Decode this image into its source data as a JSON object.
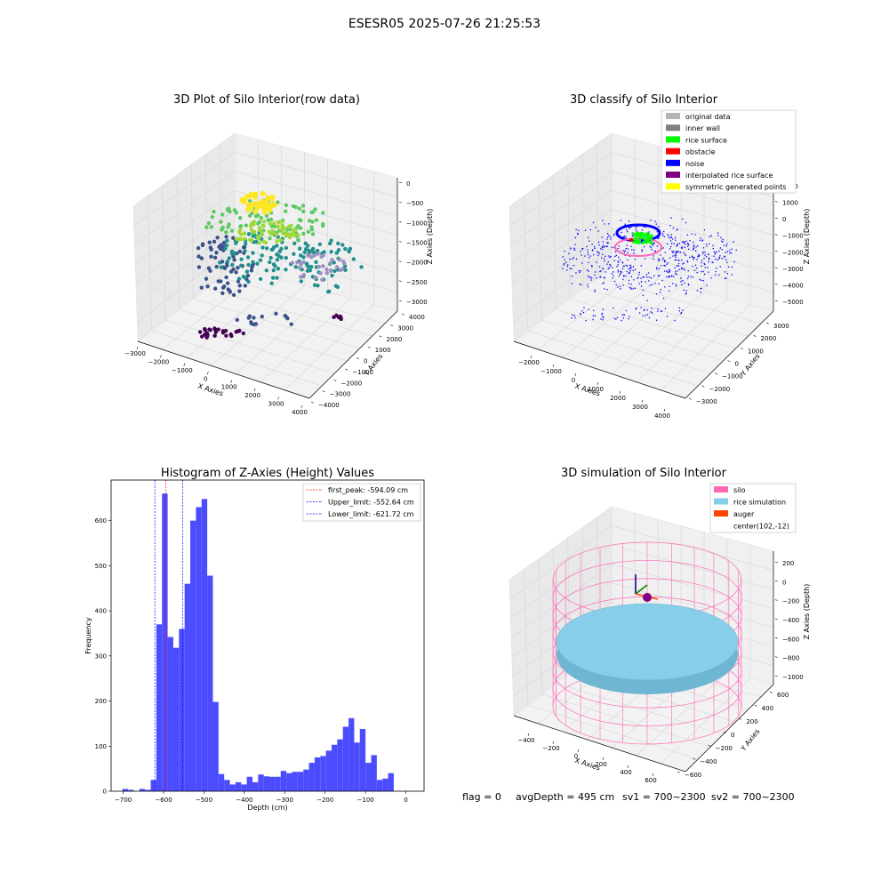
{
  "title": "ESESR05 2025-07-26 21:25:53",
  "colors": {
    "viridis": [
      "#440154",
      "#3b528b",
      "#21908d",
      "#5dc963",
      "#fde725"
    ],
    "original": "#b4b4b4",
    "inner_wall": "#808080",
    "rice_surface": "#00ff00",
    "obstacle": "#ff0000",
    "noise": "#0000ff",
    "interpolated": "#800080",
    "symmetric": "#ffff00",
    "hist_bar": "#4c4cff",
    "silo": "#ff69b4",
    "rice_sim": "#87ceeb",
    "auger": "#ff4500"
  },
  "plot1": {
    "title": "3D Plot of Silo Interior(row data)",
    "xlabel": "X Axies",
    "ylabel": "Y Axies",
    "zlabel": "Z Axies (Depth)",
    "xticks": [
      "−3000",
      "−2000",
      "−1000",
      "0",
      "1000",
      "2000",
      "3000",
      "4000"
    ],
    "yticks": [
      "−4000",
      "−3000",
      "−2000",
      "−1000",
      "0",
      "1000",
      "2000",
      "3000",
      "4000"
    ],
    "zticks": [
      "0",
      "−500",
      "−1000",
      "−1500",
      "−2000",
      "−2500",
      "−3000"
    ]
  },
  "plot2": {
    "title": "3D classify of Silo Interior",
    "xlabel": "X Axies",
    "ylabel": "Y Axies",
    "zlabel": "Z Axies (Depth)",
    "xticks": [
      "−2000",
      "−1000",
      "0",
      "1000",
      "2000",
      "3000",
      "4000"
    ],
    "yticks": [
      "−3000",
      "−2000",
      "−1000",
      "0",
      "1000",
      "2000",
      "3000"
    ],
    "zticks": [
      "2000",
      "1000",
      "0",
      "−1000",
      "−2000",
      "−3000",
      "−4000",
      "−5000"
    ],
    "legend": [
      {
        "label": "original data",
        "color": "#b4b4b4"
      },
      {
        "label": "inner wall",
        "color": "#808080"
      },
      {
        "label": "rice surface",
        "color": "#00ff00"
      },
      {
        "label": "obstacle",
        "color": "#ff0000"
      },
      {
        "label": "noise",
        "color": "#0000ff"
      },
      {
        "label": "interpolated rice surface",
        "color": "#800080"
      },
      {
        "label": "symmetric generated points",
        "color": "#ffff00"
      }
    ]
  },
  "plot4": {
    "title": "3D simulation of Silo Interior",
    "xlabel": "X Axies",
    "ylabel": "Y Axies",
    "zlabel": "Z Axies (Depth)",
    "xticks": [
      "−400",
      "−200",
      "0",
      "200",
      "400",
      "600"
    ],
    "yticks": [
      "−600",
      "−400",
      "−200",
      "0",
      "200",
      "400",
      "600"
    ],
    "zticks": [
      "200",
      "0",
      "−200",
      "−400",
      "−600",
      "−800",
      "−1000"
    ],
    "legend": [
      {
        "label": "silo",
        "color": "#ff69b4"
      },
      {
        "label": "rice simulation",
        "color": "#87ceeb"
      },
      {
        "label": "auger",
        "color": "#ff4500"
      },
      {
        "label": "center(102,-12)",
        "color": ""
      }
    ]
  },
  "chart_data": {
    "type": "bar",
    "title": "Histogram of Z-Axies (Height) Values",
    "xlabel": "Depth (cm)",
    "ylabel": "Frequency",
    "xlim": [
      -730,
      45
    ],
    "ylim": [
      0,
      690
    ],
    "xticks": [
      -700,
      -600,
      -500,
      -400,
      -300,
      -200,
      -100,
      0
    ],
    "xtick_labels": [
      "−700",
      "−600",
      "−500",
      "−400",
      "−300",
      "−200",
      "−100",
      "0"
    ],
    "yticks": [
      0,
      100,
      200,
      300,
      400,
      500,
      600
    ],
    "bin_edges_start": -702,
    "bin_width": 14,
    "values": [
      5,
      3,
      0,
      5,
      3,
      25,
      370,
      660,
      342,
      318,
      360,
      460,
      600,
      630,
      648,
      478,
      198,
      38,
      25,
      15,
      20,
      15,
      32,
      20,
      37,
      33,
      32,
      32,
      45,
      40,
      43,
      43,
      48,
      63,
      75,
      78,
      90,
      103,
      115,
      143,
      162,
      108,
      138,
      63,
      80,
      25,
      28,
      40
    ],
    "lines": [
      {
        "label": "first_peak: -594.09 cm",
        "x": -594.09,
        "color": "#ff0000"
      },
      {
        "label": "Upper_limit: -552.64 cm",
        "x": -552.64,
        "color": "#0000ff"
      },
      {
        "label": "Lower_limit: -621.72 cm",
        "x": -621.72,
        "color": "#0000ff"
      }
    ],
    "legend_position": "top-right"
  },
  "status": {
    "flag": "flag = 0",
    "avg": "avgDepth = 495 cm",
    "sv1": "sv1 = 700~2300",
    "sv2": "sv2 = 700~2300"
  }
}
